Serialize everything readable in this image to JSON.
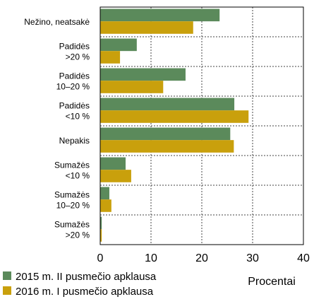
{
  "chart_data": {
    "type": "bar",
    "orientation": "horizontal",
    "categories": [
      [
        "Nežino, neatsakė"
      ],
      [
        "Padidės",
        ">20 %"
      ],
      [
        "Padidės",
        "10–20 %"
      ],
      [
        "Padidės",
        "<10 %"
      ],
      [
        "Nepakis"
      ],
      [
        "Sumažės",
        "<10 %"
      ],
      [
        "Sumažės",
        "10–20 %"
      ],
      [
        "Sumažės",
        ">20 %"
      ]
    ],
    "series": [
      {
        "name": "2015 m. II pusmečio apklausa",
        "color": "#5b8a5b",
        "values": [
          23.5,
          7.2,
          16.8,
          26.4,
          25.6,
          5.0,
          1.8,
          0.3
        ]
      },
      {
        "name": "2016 m. I pusmečio apklausa",
        "color": "#c9a00c",
        "values": [
          18.3,
          3.9,
          12.4,
          29.2,
          26.3,
          6.1,
          2.2,
          0.3
        ]
      }
    ],
    "xlabel": "Procentai",
    "xlim": [
      0,
      40
    ],
    "xticks": [
      0,
      10,
      20,
      30,
      40
    ],
    "grid": true
  }
}
